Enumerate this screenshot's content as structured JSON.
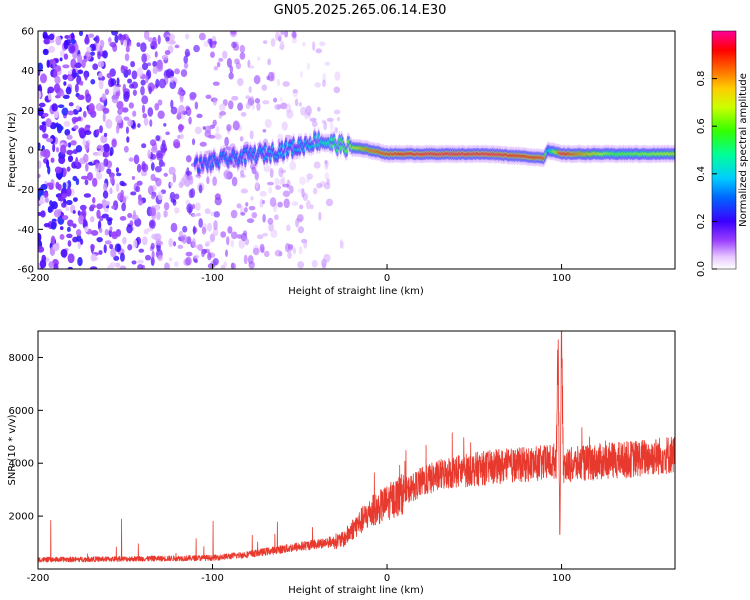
{
  "title": "GN05.2025.265.06.14.E30",
  "chart_data": [
    {
      "type": "heatmap",
      "name": "spectrogram",
      "xlabel": "Height of straight line (km)",
      "ylabel": "Frequency (Hz)",
      "xlim": [
        -200,
        165
      ],
      "ylim": [
        -60,
        60
      ],
      "xticks": [
        -200,
        -100,
        0,
        100
      ],
      "yticks": [
        -60,
        -40,
        -20,
        0,
        20,
        40,
        60
      ],
      "colorbar": {
        "label": "Normalized spectral amplitude",
        "range": [
          0,
          1
        ],
        "ticks": [
          0.0,
          0.2,
          0.4,
          0.6,
          0.8
        ]
      },
      "noise_extent_km": [
        -200,
        -35
      ],
      "signal_track": [
        {
          "x": -110,
          "f": -8,
          "amp": 0.3
        },
        {
          "x": -95,
          "f": -5,
          "amp": 0.35
        },
        {
          "x": -80,
          "f": -3,
          "amp": 0.35
        },
        {
          "x": -65,
          "f": -1,
          "amp": 0.4
        },
        {
          "x": -50,
          "f": 2,
          "amp": 0.4
        },
        {
          "x": -40,
          "f": 5,
          "amp": 0.45
        },
        {
          "x": -25,
          "f": 2,
          "amp": 0.6
        },
        {
          "x": -10,
          "f": 0,
          "amp": 0.85
        },
        {
          "x": 0,
          "f": -2,
          "amp": 0.9
        },
        {
          "x": 20,
          "f": -2,
          "amp": 0.95
        },
        {
          "x": 60,
          "f": -2,
          "amp": 0.95
        },
        {
          "x": 90,
          "f": -4,
          "amp": 0.9
        },
        {
          "x": 92,
          "f": 0,
          "amp": 0.4
        },
        {
          "x": 100,
          "f": -2,
          "amp": 0.95
        },
        {
          "x": 130,
          "f": -2,
          "amp": 0.6
        },
        {
          "x": 165,
          "f": -2,
          "amp": 0.7
        }
      ]
    },
    {
      "type": "line",
      "name": "snr",
      "xlabel": "Height of straight line (km)",
      "ylabel": "SNR (10 * v/v)",
      "xlim": [
        -200,
        165
      ],
      "ylim": [
        0,
        9000
      ],
      "xticks": [
        -200,
        -100,
        0,
        100
      ],
      "yticks": [
        2000,
        4000,
        6000,
        8000
      ],
      "color": "#e8392e",
      "trend": [
        {
          "x": -200,
          "y": 350
        },
        {
          "x": -150,
          "y": 380
        },
        {
          "x": -100,
          "y": 420
        },
        {
          "x": -80,
          "y": 550
        },
        {
          "x": -60,
          "y": 750
        },
        {
          "x": -40,
          "y": 950
        },
        {
          "x": -25,
          "y": 1100
        },
        {
          "x": -20,
          "y": 1500
        },
        {
          "x": -10,
          "y": 2100
        },
        {
          "x": 0,
          "y": 2500
        },
        {
          "x": 10,
          "y": 2900
        },
        {
          "x": 20,
          "y": 3300
        },
        {
          "x": 35,
          "y": 3650
        },
        {
          "x": 60,
          "y": 3850
        },
        {
          "x": 90,
          "y": 4000
        },
        {
          "x": 97,
          "y": 4100
        },
        {
          "x": 98,
          "y": 9000
        },
        {
          "x": 99,
          "y": 1000
        },
        {
          "x": 100,
          "y": 9000
        },
        {
          "x": 101,
          "y": 3900
        },
        {
          "x": 120,
          "y": 4050
        },
        {
          "x": 140,
          "y": 4150
        },
        {
          "x": 165,
          "y": 4350
        }
      ]
    }
  ]
}
